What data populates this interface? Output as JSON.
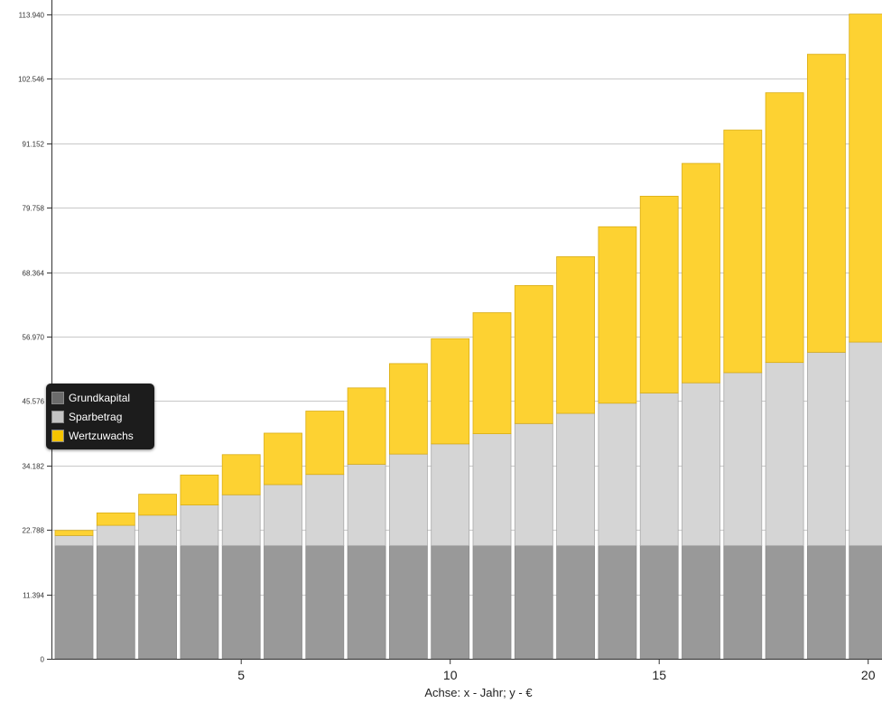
{
  "chart_data": {
    "type": "bar",
    "stacked": true,
    "xlabel": "Achse: x - Jahr; y - €",
    "x": [
      1,
      2,
      3,
      4,
      5,
      6,
      7,
      8,
      9,
      10,
      11,
      12,
      13,
      14,
      15,
      16,
      17,
      18,
      19,
      20
    ],
    "xticks": [
      5,
      10,
      15,
      20
    ],
    "xtick_labels": [
      "5",
      "10",
      "15",
      "20"
    ],
    "ylim": [
      0,
      113940
    ],
    "yticks": [
      0,
      11394,
      22788,
      34182,
      45576,
      56970,
      68364,
      79758,
      91152,
      102546,
      113940
    ],
    "ytick_labels": [
      "0",
      "11.394",
      "22.788",
      "34.182",
      "45.576",
      "56.970",
      "68.364",
      "79.758",
      "91.152",
      "102.546",
      "113.940"
    ],
    "grid": true,
    "legend_position": "left",
    "series": [
      {
        "name": "Grundkapital",
        "color": "#999999",
        "values": [
          20000,
          20000,
          20000,
          20000,
          20000,
          20000,
          20000,
          20000,
          20000,
          20000,
          20000,
          20000,
          20000,
          20000,
          20000,
          20000,
          20000,
          20000,
          20000,
          20000
        ]
      },
      {
        "name": "Sparbetrag",
        "color": "#d5d5d5",
        "values": [
          1800,
          3600,
          5400,
          7200,
          9000,
          10800,
          12600,
          14400,
          16200,
          18000,
          19800,
          21600,
          23400,
          25200,
          27000,
          28800,
          30600,
          32400,
          34200,
          36000
        ]
      },
      {
        "name": "Wertzuwachs",
        "color": "#fdd232",
        "values": [
          900,
          2200,
          3700,
          5300,
          7100,
          9100,
          11200,
          13500,
          16000,
          18600,
          21400,
          24400,
          27700,
          31200,
          34800,
          38800,
          42900,
          47700,
          52700,
          58000
        ]
      }
    ]
  },
  "legend": {
    "items": [
      {
        "label": "Grundkapital",
        "color": "#6b6b6b"
      },
      {
        "label": "Sparbetrag",
        "color": "#c4c4c4"
      },
      {
        "label": "Wertzuwachs",
        "color": "#f5c400"
      }
    ]
  }
}
